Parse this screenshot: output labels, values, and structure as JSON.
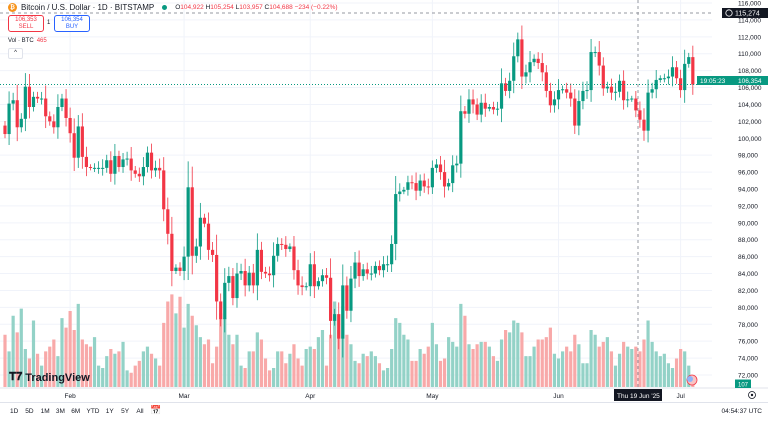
{
  "header": {
    "coin_icon": "bitcoin-icon",
    "title": "Bitcoin / U.S. Dollar · 1D · BITSTAMP",
    "ohlc": {
      "o_label": "O",
      "o": "104,922",
      "h_label": "H",
      "h": "105,254",
      "l_label": "L",
      "l": "103,957",
      "c_label": "C",
      "c": "104,688",
      "change": "−234 (−0.22%)"
    },
    "sell_price": "106,353",
    "sell_label": "SELL",
    "spread": "1",
    "buy_price": "106,354",
    "buy_label": "BUY",
    "volume_label": "Vol · BTC",
    "volume_value": "465"
  },
  "logo": "TradingView",
  "price_axis": {
    "ticks": [
      "116,000",
      "114,000",
      "112,000",
      "110,000",
      "108,000",
      "106,000",
      "104,000",
      "102,000",
      "100,000",
      "98,000",
      "96,000",
      "94,000",
      "92,000",
      "90,000",
      "88,000",
      "86,000",
      "84,000",
      "82,000",
      "80,000",
      "78,000",
      "76,000",
      "74,000",
      "72,000"
    ],
    "crosshair_price": "115,274",
    "last_price": "106,354",
    "countdown": "19:05:23",
    "volume_tag": "107"
  },
  "time_axis": {
    "months": [
      "Feb",
      "Mar",
      "Apr",
      "May",
      "Jun",
      "Jul"
    ],
    "crosshair_date": "Thu 19 Jun '25"
  },
  "bottom_toolbar": {
    "ranges": [
      "1D",
      "5D",
      "1M",
      "3M",
      "6M",
      "YTD",
      "1Y",
      "5Y",
      "All"
    ],
    "clock": "04:54:37 UTC"
  },
  "colors": {
    "up": "#089981",
    "down": "#f23645",
    "up_volume": "#93d2c7",
    "down_volume": "#f8a9a9",
    "grid": "#f0f3fa"
  },
  "chart_data": {
    "type": "candlestick",
    "symbol": "BTCUSD",
    "interval": "1D",
    "ylim": [
      72000,
      116000
    ],
    "first_date": "2025-01-16",
    "closes": [
      100500,
      104100,
      104500,
      101300,
      102300,
      106100,
      103700,
      104900,
      104700,
      104700,
      102600,
      102000,
      101300,
      103700,
      104700,
      102400,
      100600,
      97700,
      101400,
      97800,
      96600,
      96500,
      96500,
      96500,
      96500,
      97400,
      95800,
      97900,
      96600,
      97500,
      97600,
      96200,
      95800,
      95500,
      96600,
      98300,
      96200,
      96500,
      96200,
      91600,
      88700,
      84300,
      84700,
      84300,
      86000,
      94200,
      86100,
      87200,
      90600,
      89900,
      86800,
      86200,
      80700,
      78600,
      82900,
      83700,
      81100,
      84000,
      84300,
      82600,
      84100,
      82600,
      86800,
      84200,
      84000,
      83800,
      86100,
      87500,
      87400,
      86900,
      87200,
      84400,
      82600,
      82400,
      82500,
      85100,
      82500,
      83100,
      83800,
      83500,
      78400,
      79200,
      76300,
      82600,
      79600,
      83400,
      85300,
      83700,
      84500,
      84000,
      84000,
      84900,
      84400,
      85100,
      85100,
      87500,
      93400,
      93700,
      93900,
      94800,
      94700,
      93800,
      95000,
      94300,
      94200,
      96500,
      96900,
      96000,
      94300,
      94700,
      96800,
      97000,
      103200,
      102900,
      104600,
      104000,
      102800,
      104200,
      103500,
      103700,
      103400,
      103500,
      106500,
      105600,
      106800,
      109700,
      111700,
      107300,
      107800,
      109000,
      109400,
      108900,
      107800,
      105600,
      103900,
      104600,
      105700,
      105800,
      105400,
      104700,
      101500,
      104400,
      105600,
      105700,
      110200,
      110200,
      108600,
      105900,
      106100,
      105400,
      105500,
      106800,
      104500,
      104600,
      104700,
      103300,
      102200,
      100900,
      105400,
      105800,
      106900,
      107100,
      107100,
      107300,
      108400,
      107100,
      105700,
      108800,
      109600,
      106354
    ],
    "volumes": [
      2200,
      1500,
      3000,
      2300,
      3300,
      1600,
      1200,
      2800,
      1400,
      900,
      1500,
      1700,
      2000,
      1300,
      2900,
      2500,
      3200,
      2400,
      3500,
      2000,
      1800,
      1700,
      2100,
      900,
      800,
      1300,
      1600,
      1400,
      1500,
      1900,
      700,
      600,
      900,
      1100,
      1500,
      1700,
      1400,
      1200,
      900,
      2700,
      3600,
      3900,
      3100,
      3800,
      2500,
      3500,
      3000,
      2600,
      2100,
      1800,
      2000,
      1000,
      1700,
      3100,
      2900,
      2200,
      1800,
      2200,
      900,
      800,
      1500,
      1500,
      2300,
      2000,
      1200,
      700,
      800,
      1500,
      1500,
      1000,
      1400,
      1800,
      1200,
      900,
      1600,
      1700,
      1600,
      2100,
      2400,
      900,
      2200,
      3600,
      2400,
      3400,
      2200,
      1800,
      1100,
      1000,
      1400,
      1300,
      1500,
      1300,
      1000,
      700,
      800,
      1600,
      2900,
      2700,
      2200,
      2000,
      1100,
      1100,
      1600,
      1400,
      1700,
      2700,
      1800,
      1100,
      1200,
      2100,
      1900,
      1700,
      3500,
      3000,
      1800,
      1600,
      1800,
      1900,
      1900,
      1700,
      1300,
      1100,
      2000,
      2400,
      2300,
      2800,
      2700,
      2300,
      1300,
      1300,
      1700,
      2000,
      2000,
      2100,
      2500,
      1400,
      1200,
      1500,
      1700,
      1500,
      2200,
      1800,
      1000,
      1000,
      2400,
      2200,
      1700,
      1900,
      2100,
      1500,
      900,
      1400,
      1900,
      1700,
      1600,
      1700,
      1500,
      2000,
      2800,
      1900,
      1500,
      1300,
      1400,
      1000,
      800,
      1200,
      1600,
      1500,
      900,
      465
    ]
  }
}
